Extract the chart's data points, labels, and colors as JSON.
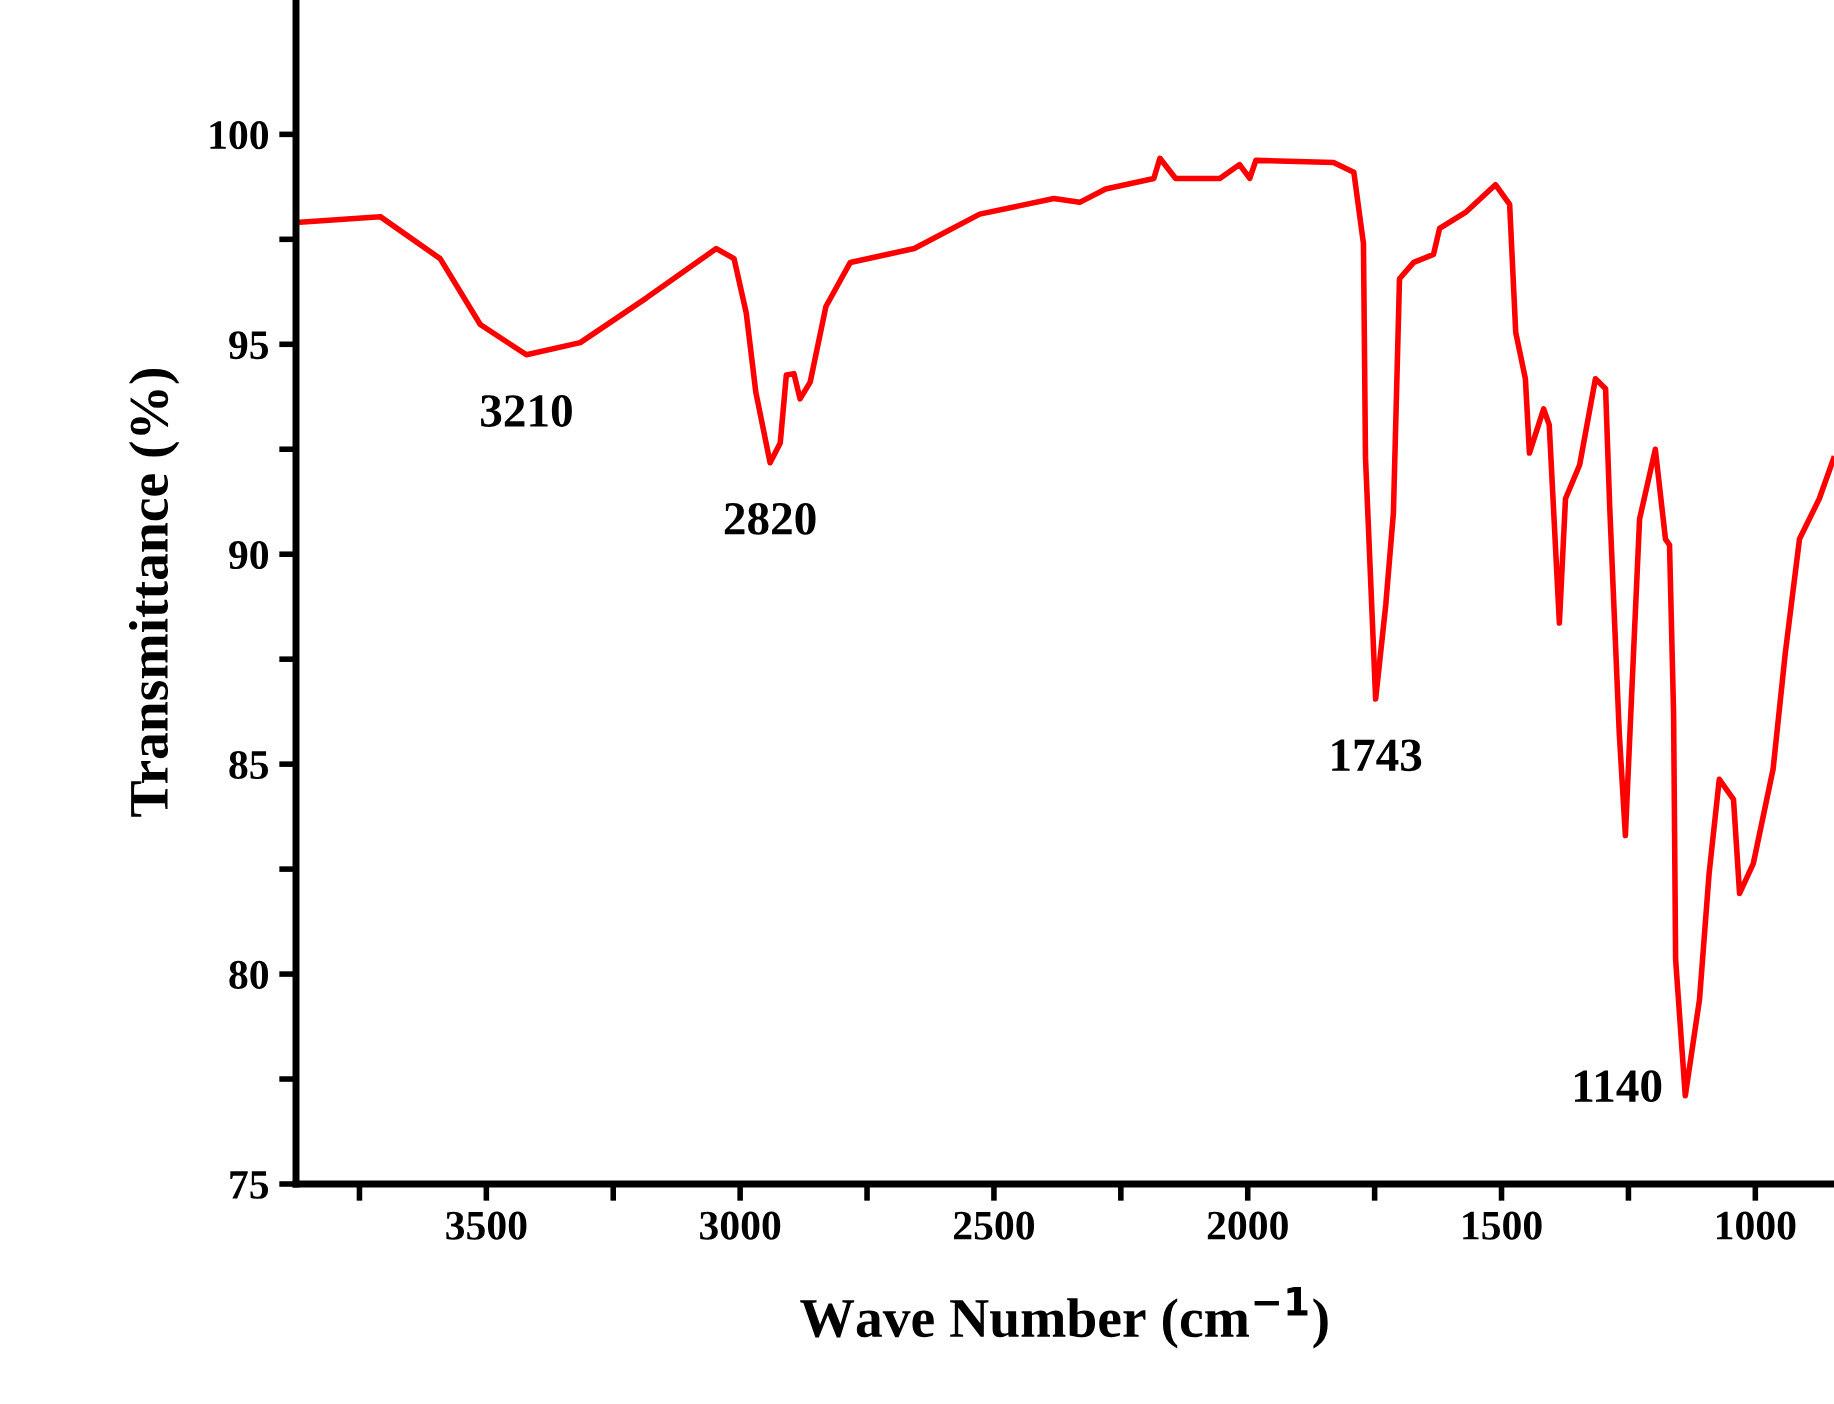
{
  "chart_data": {
    "type": "line",
    "xlabel": "Wave Number (cm$^{−1}$)",
    "ylabel": "Transmittance (%)",
    "x": [
      3874,
      3709,
      3591,
      3512,
      3421,
      3315,
      3185,
      3047,
      3012,
      2988,
      2969,
      2941,
      2921,
      2909,
      2894,
      2882,
      2862,
      2831,
      2783,
      2657,
      2528,
      2382,
      2331,
      2280,
      2185,
      2173,
      2142,
      2055,
      2016,
      1996,
      1984,
      1831,
      1791,
      1772,
      1768,
      1748,
      1728,
      1713,
      1701,
      1673,
      1634,
      1622,
      1571,
      1512,
      1484,
      1472,
      1453,
      1445,
      1417,
      1406,
      1386,
      1374,
      1346,
      1315,
      1295,
      1287,
      1268,
      1256,
      1240,
      1228,
      1197,
      1177,
      1169,
      1161,
      1157,
      1138,
      1110,
      1091,
      1071,
      1043,
      1031,
      1004,
      965,
      941,
      913,
      874,
      846
    ],
    "series": [
      {
        "color": "#ff0000",
        "values": [
          97.9,
          98.04,
          97.04,
          95.47,
          94.75,
          95.04,
          96.1,
          97.28,
          97.04,
          95.75,
          93.85,
          92.18,
          92.65,
          94.27,
          94.3,
          93.7,
          94.1,
          95.9,
          96.95,
          97.28,
          98.1,
          98.47,
          98.38,
          98.7,
          98.95,
          99.43,
          98.95,
          98.95,
          99.28,
          98.95,
          99.38,
          99.33,
          99.1,
          97.4,
          92.3,
          86.55,
          88.8,
          90.98,
          96.56,
          96.95,
          97.14,
          97.76,
          98.14,
          98.8,
          98.33,
          95.28,
          94.18,
          92.41,
          93.46,
          93.08,
          88.36,
          91.32,
          92.13,
          94.18,
          93.94,
          91.17,
          85.73,
          83.3,
          87.64,
          90.84,
          92.5,
          90.36,
          90.22,
          86.2,
          80.34,
          77.1,
          79.39,
          82.4,
          84.64,
          84.16,
          81.92,
          82.63,
          84.88,
          87.64,
          90.36,
          91.32,
          92.27
        ]
      }
    ],
    "xlim": [
      3875,
      845
    ],
    "xticks": [
      {
        "value": 3750,
        "label": null
      },
      3500,
      {
        "value": 3250,
        "label": null
      },
      3000,
      {
        "value": 2750,
        "label": null
      },
      2500,
      {
        "value": 2250,
        "label": null
      },
      2000,
      {
        "value": 1750,
        "label": null
      },
      1500,
      {
        "value": 1250,
        "label": null
      },
      1000
    ],
    "ylim": [
      75,
      103.2
    ],
    "yticks": [
      75,
      {
        "value": 77.5,
        "label": null
      },
      80,
      {
        "value": 82.5,
        "label": null
      },
      85,
      {
        "value": 87.5,
        "label": null
      },
      90,
      {
        "value": 92.5,
        "label": null
      },
      95,
      {
        "value": 97.5,
        "label": null
      },
      100
    ],
    "annotations": [
      {
        "text": "3210",
        "x": 3421,
        "y": 94.75
      },
      {
        "text": "2820",
        "x": 2941,
        "y": 92.18
      },
      {
        "text": "1743",
        "x": 1748,
        "y": 86.55
      },
      {
        "text": "1140",
        "x": 1138,
        "y": 77.1
      }
    ],
    "grid": false,
    "legend": false,
    "marker": "none",
    "line_style": "solid"
  }
}
